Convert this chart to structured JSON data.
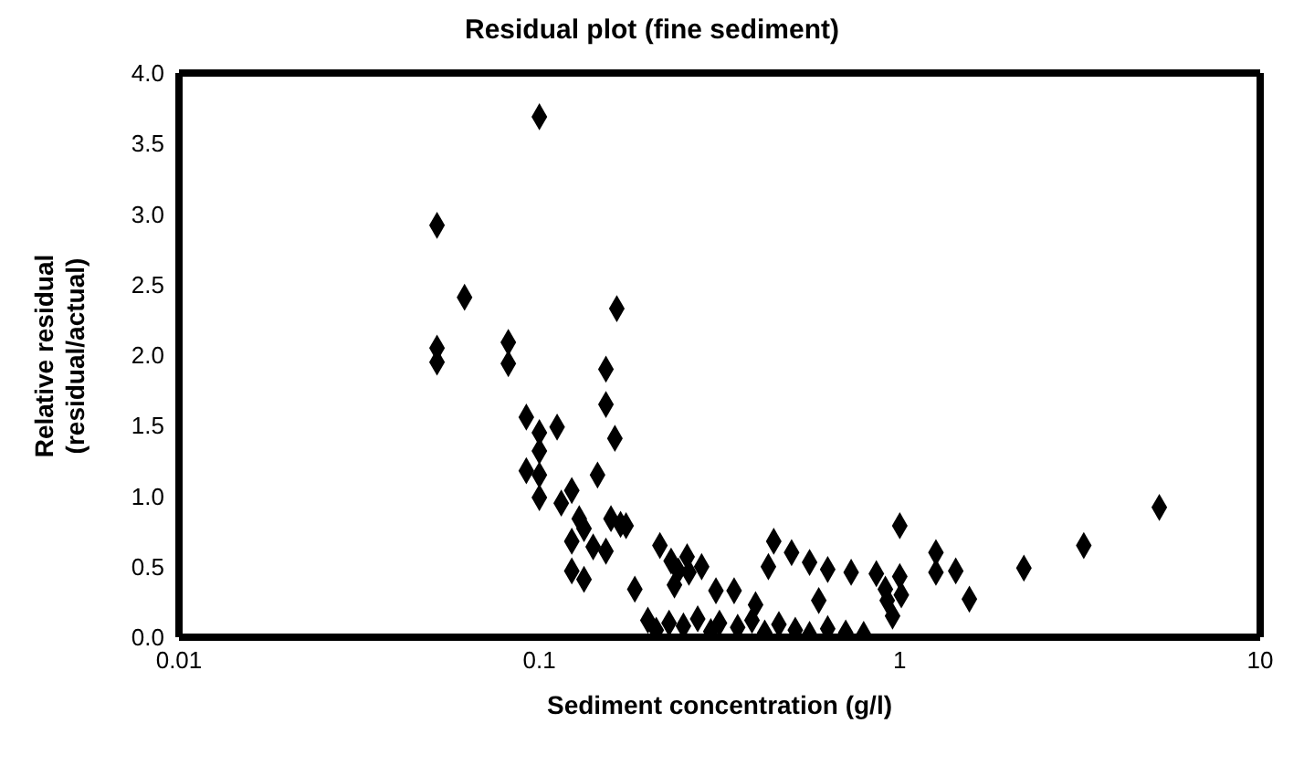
{
  "chart_data": {
    "type": "scatter",
    "title": "Residual plot (fine sediment)",
    "xlabel": "Sediment concentration (g/l)",
    "ylabel": "Relative residual\n(residual/actual)",
    "log": "x",
    "xlim": [
      0.01,
      10
    ],
    "xticks": [
      0.01,
      0.1,
      1,
      10
    ],
    "ylim": [
      0,
      4
    ],
    "yticks": [
      {
        "value": 0,
        "label": "0.0"
      },
      {
        "value": 0.5,
        "label": "0.5"
      },
      {
        "value": 1,
        "label": "1.0"
      },
      {
        "value": 1.5,
        "label": "1.5"
      },
      {
        "value": 2,
        "label": "2.0"
      },
      {
        "value": 2.5,
        "label": "2.5"
      },
      {
        "value": 3,
        "label": "3.0"
      },
      {
        "value": 3.5,
        "label": "3.5"
      },
      {
        "value": 4,
        "label": "4.0"
      }
    ],
    "grid": false,
    "legend": false,
    "marker": "diamond",
    "series": [
      {
        "color": "#000000",
        "x": [
          0.052,
          0.052,
          0.052,
          0.062,
          0.082,
          0.082,
          0.1,
          0.092,
          0.1,
          0.1,
          0.1,
          0.1,
          0.112,
          0.092,
          0.115,
          0.123,
          0.123,
          0.123,
          0.133,
          0.129,
          0.133,
          0.145,
          0.141,
          0.153,
          0.153,
          0.153,
          0.162,
          0.164,
          0.158,
          0.168,
          0.174,
          0.184,
          0.216,
          0.232,
          0.243,
          0.237,
          0.257,
          0.282,
          0.26,
          0.309,
          0.347,
          0.398,
          0.432,
          0.596,
          0.447,
          0.501,
          0.562,
          0.631,
          0.733,
          0.861,
          0.912,
          0.923,
          1.0,
          1.0,
          1.01,
          0.955,
          1.26,
          1.26,
          1.43,
          1.56,
          2.21,
          3.24,
          5.25,
          0.2,
          0.211,
          0.229,
          0.251,
          0.275,
          0.299,
          0.316,
          0.355,
          0.389,
          0.422,
          0.462,
          0.513,
          0.562,
          0.631,
          0.708,
          0.794
        ],
        "values": [
          2.92,
          2.05,
          1.95,
          2.41,
          2.09,
          1.94,
          3.69,
          1.56,
          1.45,
          1.32,
          1.15,
          0.99,
          1.49,
          1.18,
          0.95,
          1.04,
          0.68,
          0.47,
          0.41,
          0.84,
          0.77,
          1.15,
          0.64,
          0.61,
          1.9,
          1.65,
          1.41,
          2.33,
          0.84,
          0.8,
          0.79,
          0.34,
          0.65,
          0.54,
          0.47,
          0.37,
          0.57,
          0.5,
          0.46,
          0.33,
          0.33,
          0.23,
          0.5,
          0.26,
          0.68,
          0.6,
          0.53,
          0.48,
          0.46,
          0.45,
          0.34,
          0.26,
          0.79,
          0.43,
          0.3,
          0.15,
          0.6,
          0.46,
          0.47,
          0.27,
          0.49,
          0.65,
          0.92,
          0.12,
          0.05,
          0.1,
          0.08,
          0.13,
          0.04,
          0.1,
          0.07,
          0.12,
          0.03,
          0.09,
          0.05,
          0.02,
          0.06,
          0.03,
          0.02
        ]
      }
    ]
  }
}
